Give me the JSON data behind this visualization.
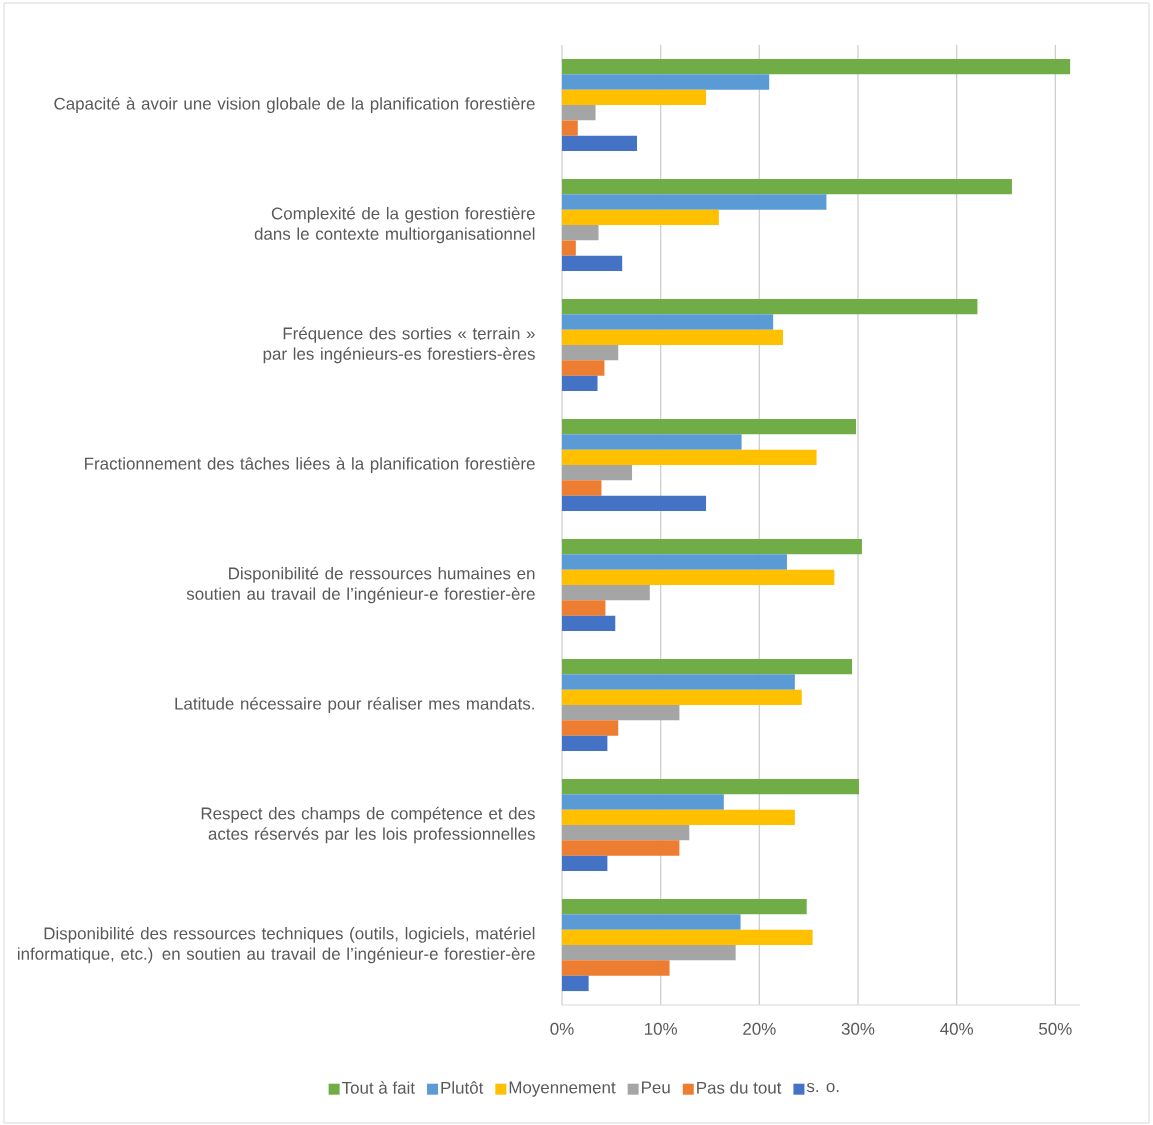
{
  "chart_data": {
    "type": "bar",
    "orientation": "horizontal",
    "categories": [
      "Capacité à avoir une vision globale de la planification forestière",
      "Complexité de la gestion forestière dans le contexte multiorganisationnel",
      "Fréquence des sorties « terrain » par les ingénieurs-es forestiers-ères",
      "Fractionnement des tâches liées à la planification forestière",
      "Disponibilité de ressources humaines en soutien au travail de l’ingénieur-e forestier-ère",
      "Latitude nécessaire pour réaliser mes mandats.",
      "Respect des champs de compétence et des actes réservés par les lois professionnelles",
      "Disponibilité des ressources techniques (outils, logiciels, matériel informatique, etc.) en soutien au travail de l’ingénieur-e forestier-ère"
    ],
    "series": [
      {
        "name": "Tout à fait",
        "color": "#70ad47",
        "values": [
          51.5,
          45.6,
          42.1,
          29.8,
          30.4,
          29.4,
          30.1,
          24.8
        ]
      },
      {
        "name": "Plutôt",
        "color": "#5b9bd5",
        "values": [
          21.0,
          26.8,
          21.4,
          18.2,
          22.8,
          23.6,
          16.4,
          18.1
        ]
      },
      {
        "name": "Moyennement",
        "color": "#ffc000",
        "values": [
          14.6,
          15.9,
          22.4,
          25.8,
          27.6,
          24.3,
          23.6,
          25.4
        ]
      },
      {
        "name": "Peu",
        "color": "#a5a5a5",
        "values": [
          3.4,
          3.7,
          5.7,
          7.1,
          8.9,
          11.9,
          12.9,
          17.6
        ]
      },
      {
        "name": "Pas du tout",
        "color": "#ed7d31",
        "values": [
          1.6,
          1.4,
          4.3,
          4.0,
          4.4,
          5.7,
          11.9,
          10.9
        ]
      },
      {
        "name": "s. o.",
        "color": "#4472c4",
        "values": [
          7.6,
          6.1,
          3.6,
          14.6,
          5.4,
          4.6,
          4.6,
          2.7
        ]
      }
    ],
    "xlim": [
      0,
      52.5
    ],
    "xticks": [
      {
        "value": 0,
        "label": "0%"
      },
      {
        "value": 10,
        "label": "10%"
      },
      {
        "value": 20,
        "label": "20%"
      },
      {
        "value": 30,
        "label": "30%"
      },
      {
        "value": 40,
        "label": "40%"
      },
      {
        "value": 50,
        "label": "50%"
      }
    ],
    "grid": "x",
    "legend": "bottom"
  }
}
